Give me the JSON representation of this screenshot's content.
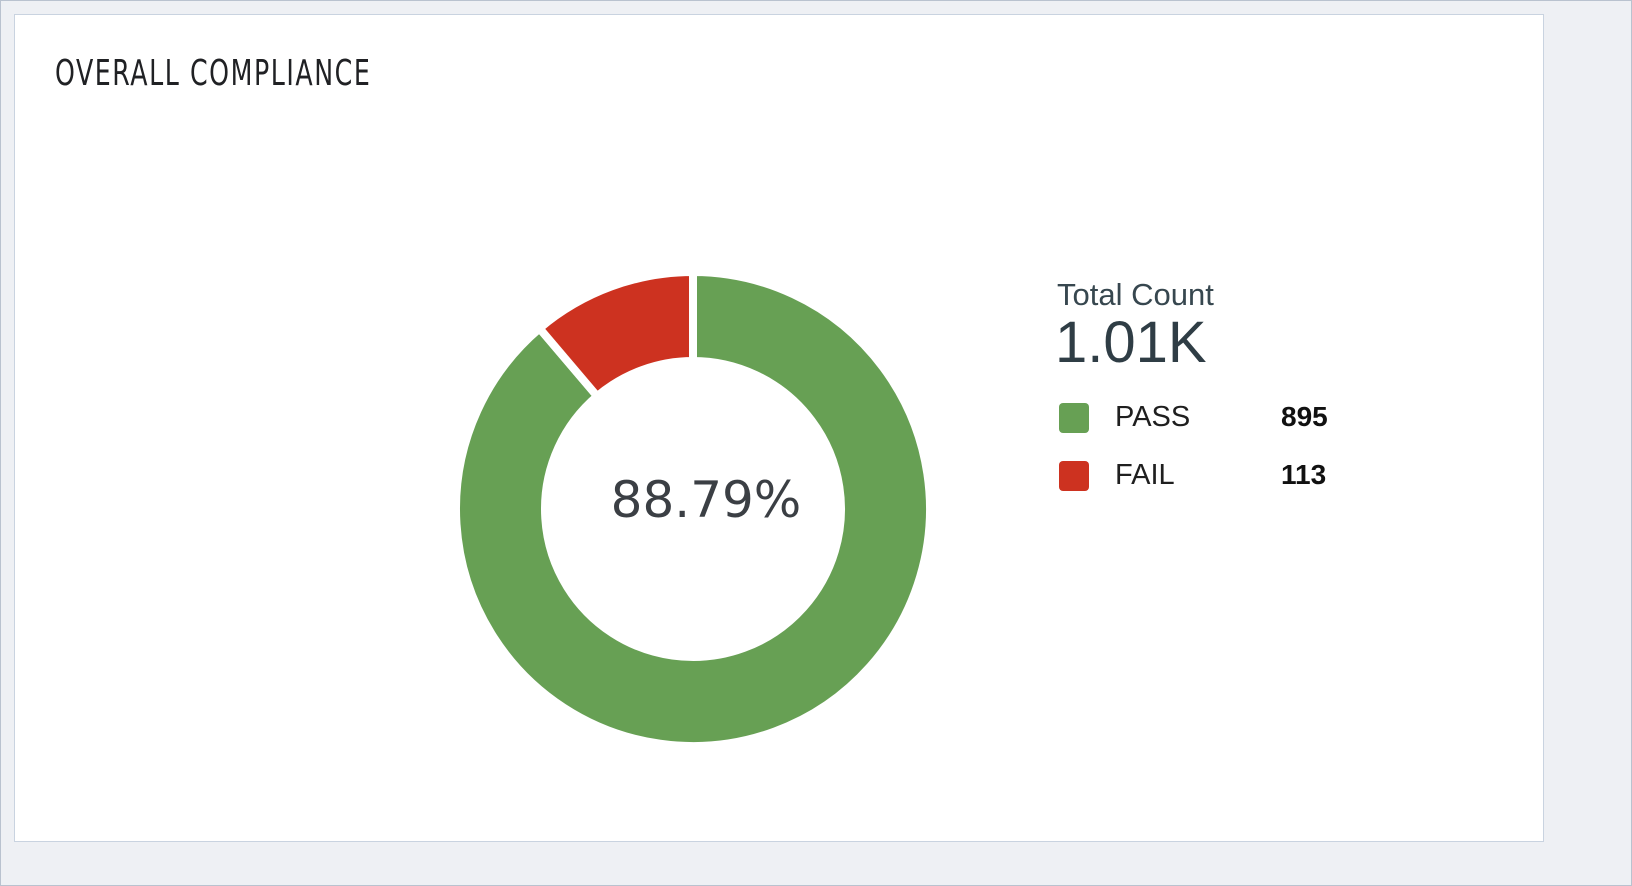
{
  "title": "OVERALL COMPLIANCE",
  "chart_data": {
    "type": "pie",
    "variant": "donut",
    "title": "OVERALL COMPLIANCE",
    "center_label": "88.79%",
    "total_label": "Total Count",
    "total_value": "1.01K",
    "categories": [
      "PASS",
      "FAIL"
    ],
    "values": [
      895,
      113
    ],
    "colors": [
      "#67a054",
      "#cd3220"
    ],
    "legend_position": "right"
  }
}
